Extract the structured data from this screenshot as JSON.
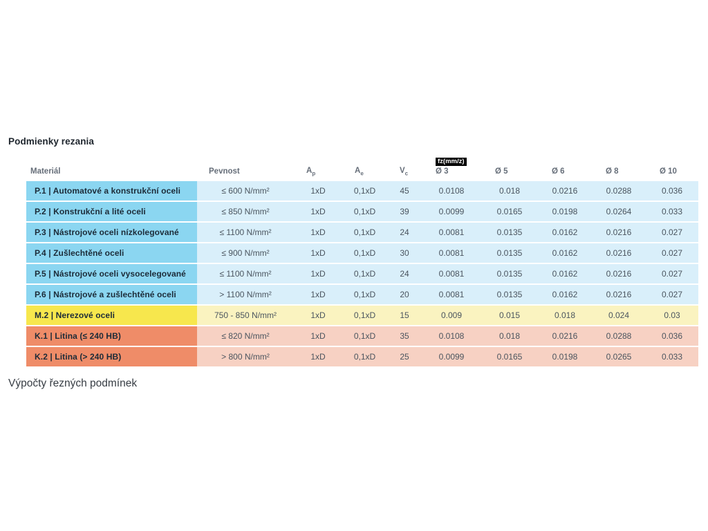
{
  "title": "Podmienky rezania",
  "footer": "Výpočty řezných podmínek",
  "table": {
    "fz_badge": "fz(mm/z)",
    "headers": {
      "material": "Materiál",
      "pevnost": "Pevnost",
      "ap_main": "A",
      "ap_sub": "p",
      "ae_main": "A",
      "ae_sub": "e",
      "vc_main": "V",
      "vc_sub": "c",
      "d3": "Ø 3",
      "d5": "Ø 5",
      "d6": "Ø 6",
      "d8": "Ø 8",
      "d10": "Ø 10"
    },
    "rows": [
      {
        "material": "P.1 | Automatové a konstrukční oceli",
        "pevnost": "≤ 600 N/mm²",
        "ap": "1xD",
        "ae": "0,1xD",
        "vc": "45",
        "d3": "0.0108",
        "d5": "0.018",
        "d6": "0.0216",
        "d8": "0.0288",
        "d10": "0.036",
        "theme": "blue"
      },
      {
        "material": "P.2 | Konstrukční a lité oceli",
        "pevnost": "≤ 850 N/mm²",
        "ap": "1xD",
        "ae": "0,1xD",
        "vc": "39",
        "d3": "0.0099",
        "d5": "0.0165",
        "d6": "0.0198",
        "d8": "0.0264",
        "d10": "0.033",
        "theme": "blue"
      },
      {
        "material": "P.3 | Nástrojové oceli nízkolegované",
        "pevnost": "≤ 1100 N/mm²",
        "ap": "1xD",
        "ae": "0,1xD",
        "vc": "24",
        "d3": "0.0081",
        "d5": "0.0135",
        "d6": "0.0162",
        "d8": "0.0216",
        "d10": "0.027",
        "theme": "blue"
      },
      {
        "material": "P.4 | Zušlechtěné oceli",
        "pevnost": "≤ 900 N/mm²",
        "ap": "1xD",
        "ae": "0,1xD",
        "vc": "30",
        "d3": "0.0081",
        "d5": "0.0135",
        "d6": "0.0162",
        "d8": "0.0216",
        "d10": "0.027",
        "theme": "blue"
      },
      {
        "material": "P.5 | Nástrojové oceli vysocelegované",
        "pevnost": "≤ 1100 N/mm²",
        "ap": "1xD",
        "ae": "0,1xD",
        "vc": "24",
        "d3": "0.0081",
        "d5": "0.0135",
        "d6": "0.0162",
        "d8": "0.0216",
        "d10": "0.027",
        "theme": "blue"
      },
      {
        "material": "P.6 | Nástrojové a zušlechtěné oceli",
        "pevnost": "> 1100 N/mm²",
        "ap": "1xD",
        "ae": "0,1xD",
        "vc": "20",
        "d3": "0.0081",
        "d5": "0.0135",
        "d6": "0.0162",
        "d8": "0.0216",
        "d10": "0.027",
        "theme": "blue"
      },
      {
        "material": "M.2 | Nerezové oceli",
        "pevnost": "750 - 850 N/mm²",
        "ap": "1xD",
        "ae": "0,1xD",
        "vc": "15",
        "d3": "0.009",
        "d5": "0.015",
        "d6": "0.018",
        "d8": "0.024",
        "d10": "0.03",
        "theme": "yellow"
      },
      {
        "material": "K.1 | Litina (≤ 240 HB)",
        "pevnost": "≤ 820 N/mm²",
        "ap": "1xD",
        "ae": "0,1xD",
        "vc": "35",
        "d3": "0.0108",
        "d5": "0.018",
        "d6": "0.0216",
        "d8": "0.0288",
        "d10": "0.036",
        "theme": "red"
      },
      {
        "material": "K.2 | Litina (> 240 HB)",
        "pevnost": "> 800 N/mm²",
        "ap": "1xD",
        "ae": "0,1xD",
        "vc": "25",
        "d3": "0.0099",
        "d5": "0.0165",
        "d6": "0.0198",
        "d8": "0.0265",
        "d10": "0.033",
        "theme": "red"
      }
    ]
  },
  "colors": {
    "blue_label": "#8bd6f1",
    "blue_cell": "#d9effa",
    "yellow_label": "#f7e74d",
    "yellow_cell": "#faf3c0",
    "red_label": "#ef8c68",
    "red_cell": "#f7d1c3",
    "badge_bg": "#000000",
    "badge_text": "#ffffff"
  }
}
